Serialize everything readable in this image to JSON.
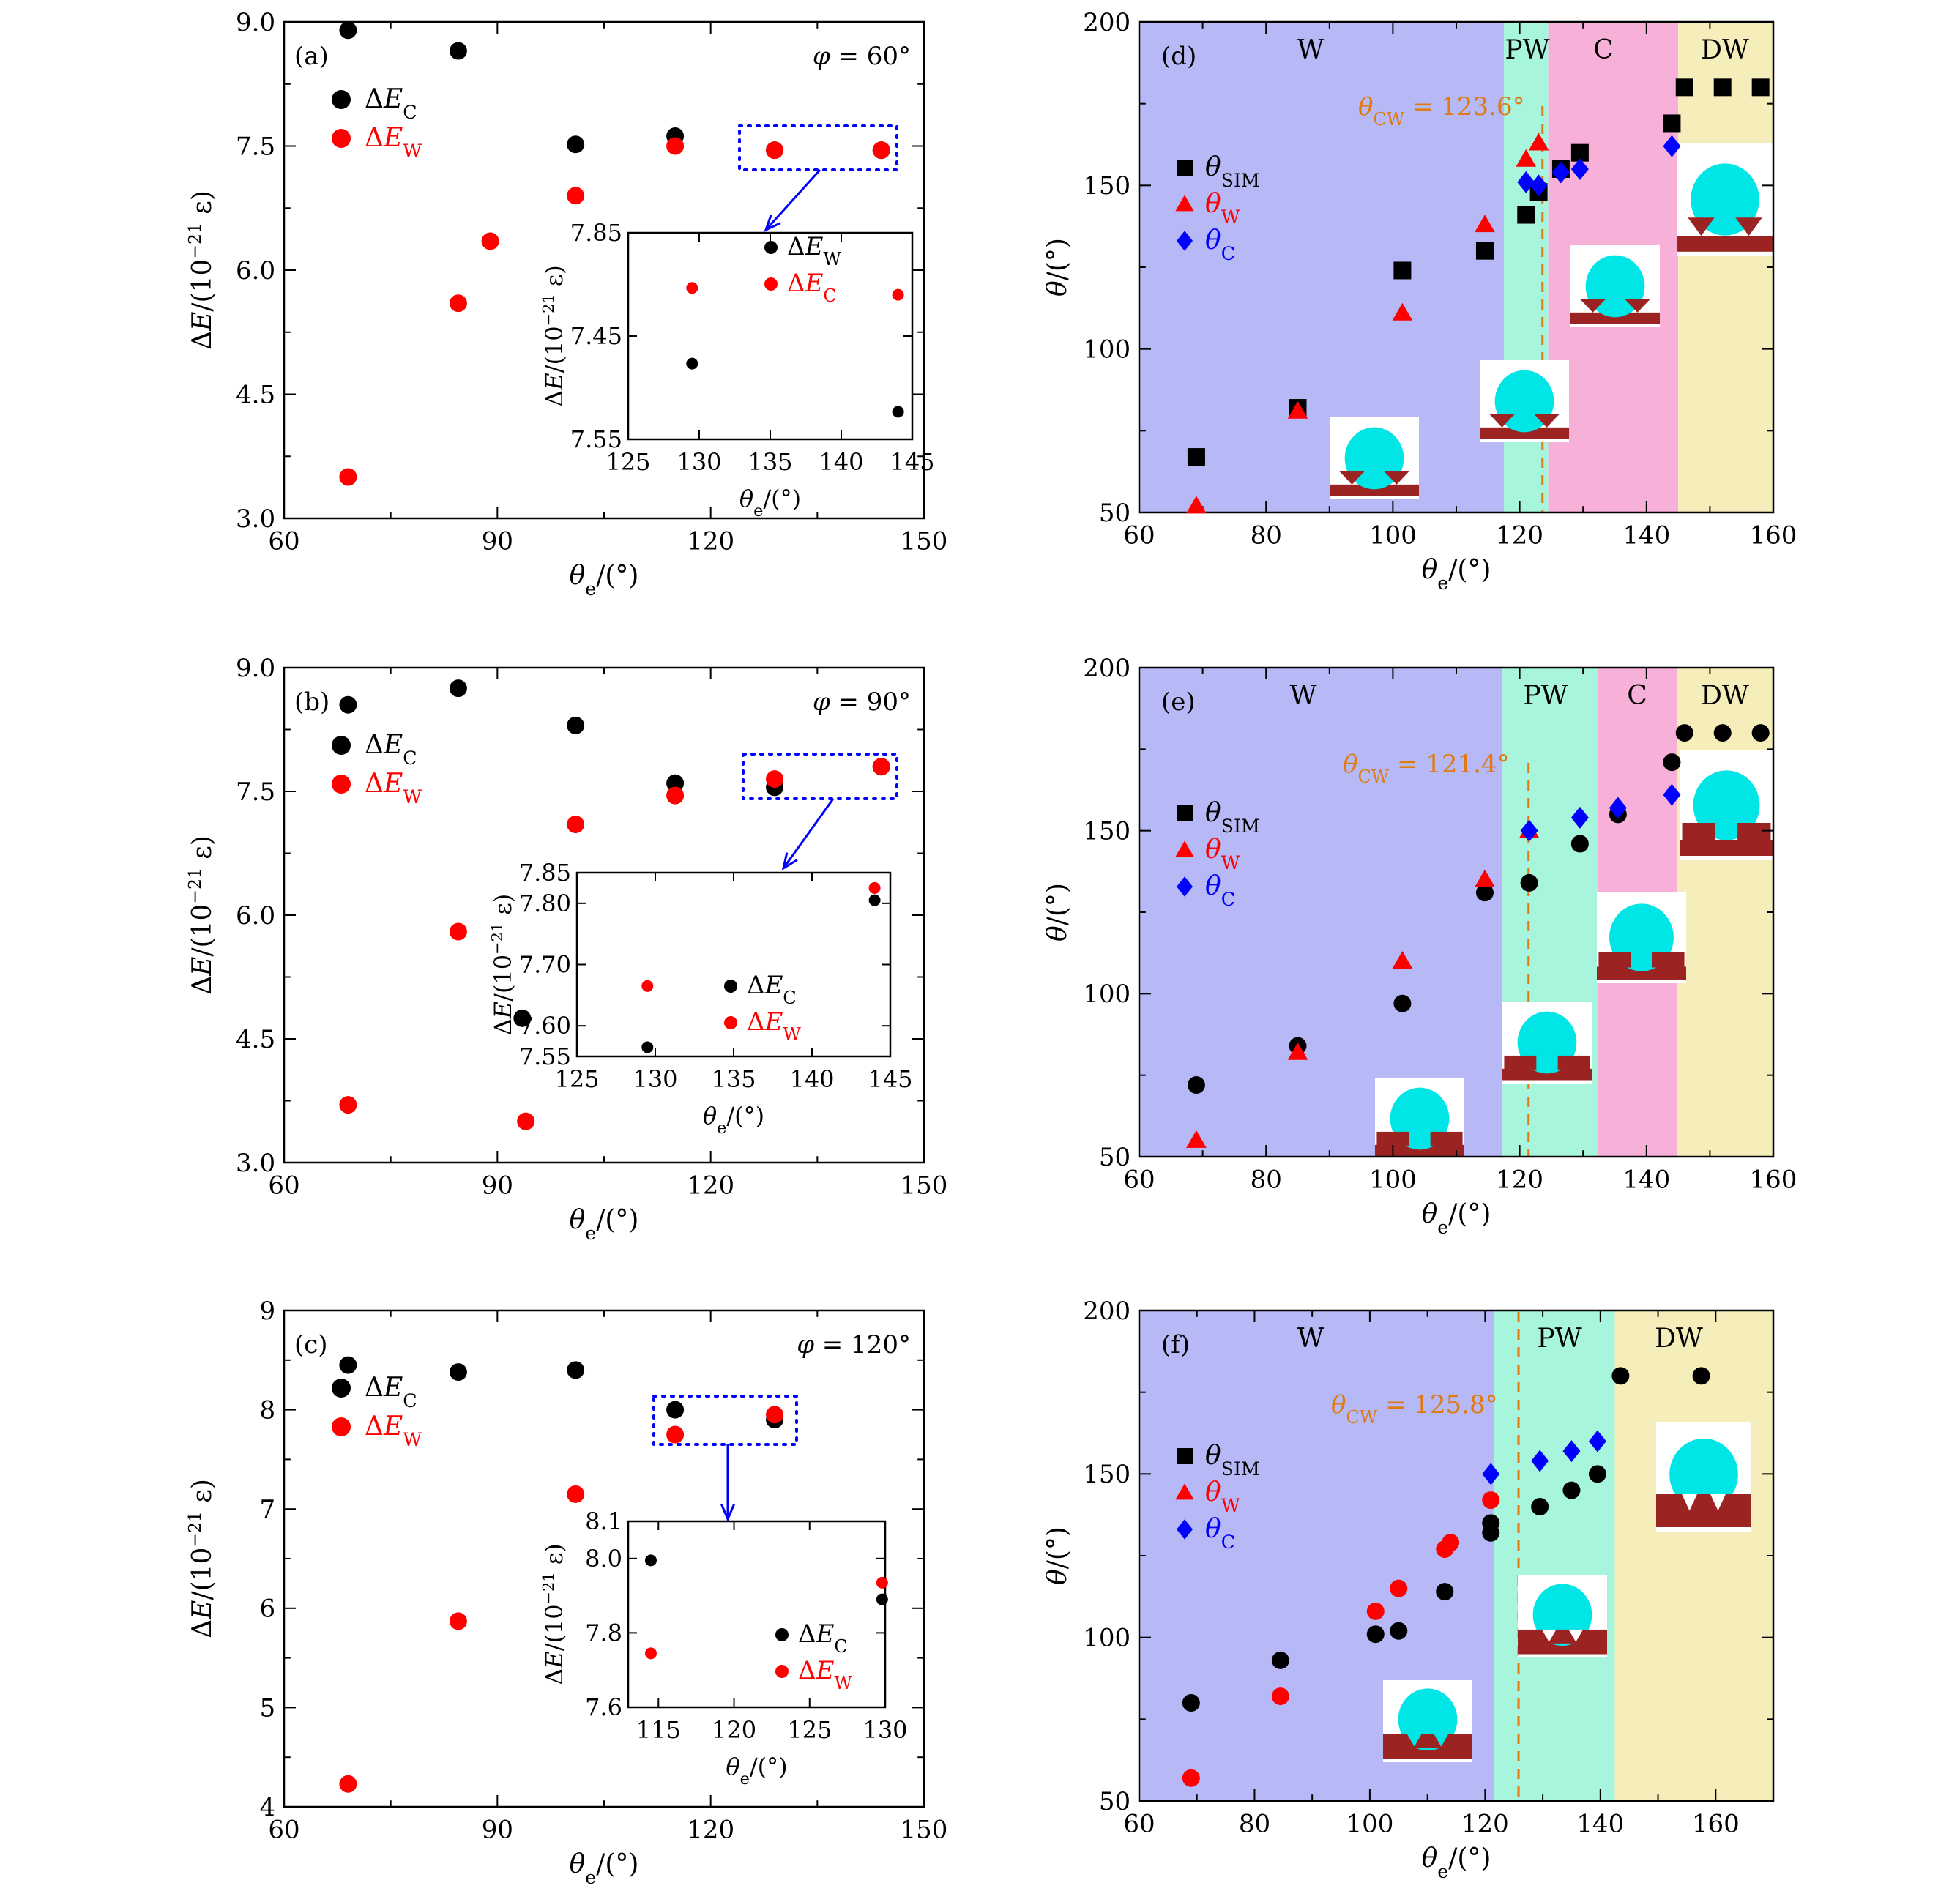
{
  "chart_data": [
    {
      "panel": "(a)",
      "type": "scatter",
      "annotation": "φ = 60°",
      "xlabel": "θe/(°)",
      "ylabel": "ΔE/(10⁻²¹ ε)",
      "xlim": [
        60,
        150
      ],
      "ylim": [
        3.0,
        9.0
      ],
      "xticks": [
        "60",
        "90",
        "120",
        "150"
      ],
      "yticks": [
        "3.0",
        "4.5",
        "6.0",
        "7.5",
        "9.0"
      ],
      "legend": [
        "ΔEC",
        "ΔEW"
      ],
      "legend_position": "upper-left",
      "series": [
        {
          "name": "ΔEC",
          "color": "#000000",
          "x": [
            69,
            84.5,
            101,
            115,
            129,
            144
          ],
          "y": [
            8.9,
            8.65,
            7.52,
            7.62,
            7.45,
            7.45
          ]
        },
        {
          "name": "ΔEW",
          "color": "#ff0000",
          "x": [
            69,
            84.5,
            89,
            101,
            115,
            129,
            144
          ],
          "y": [
            3.5,
            5.6,
            6.35,
            6.9,
            7.5,
            7.45,
            7.45
          ]
        }
      ],
      "inset": {
        "xlabel": "θe/(°)",
        "ylabel": "ΔE/(10⁻²¹ ε)",
        "xlim": [
          125,
          145
        ],
        "xticks": [
          "125",
          "130",
          "135",
          "140",
          "145"
        ],
        "yticks": [
          "7.85",
          "7.45",
          "7.55"
        ],
        "legend": [
          "ΔEW",
          "ΔEC"
        ],
        "points_black": [
          [
            129.5,
            7.66
          ],
          [
            144,
            7.59
          ]
        ],
        "points_red": [
          [
            129.5,
            7.77
          ],
          [
            144,
            7.76
          ]
        ]
      }
    },
    {
      "panel": "(b)",
      "type": "scatter",
      "annotation": "φ = 90°",
      "xlabel": "θe/(°)",
      "ylabel": "ΔE/(10⁻²¹ ε)",
      "xlim": [
        60,
        150
      ],
      "ylim": [
        3.0,
        9.0
      ],
      "xticks": [
        "60",
        "90",
        "120",
        "150"
      ],
      "yticks": [
        "3.0",
        "4.5",
        "6.0",
        "7.5",
        "9.0"
      ],
      "legend": [
        "ΔEC",
        "ΔEW"
      ],
      "legend_position": "upper-left",
      "series": [
        {
          "name": "ΔEC",
          "color": "#000000",
          "x": [
            69,
            84.5,
            93.5,
            101,
            115,
            129,
            144
          ],
          "y": [
            8.55,
            8.75,
            4.75,
            8.3,
            7.6,
            7.55,
            7.8
          ]
        },
        {
          "name": "ΔEW",
          "color": "#ff0000",
          "x": [
            69,
            84.5,
            94,
            101,
            115,
            129,
            144
          ],
          "y": [
            3.7,
            5.8,
            3.5,
            7.1,
            7.45,
            7.65,
            7.8
          ]
        }
      ],
      "inset": {
        "xlabel": "θe/(°)",
        "ylabel": "ΔE/(10⁻²¹ ε)",
        "xlim": [
          125,
          145
        ],
        "ylim": [
          7.55,
          7.85
        ],
        "xticks": [
          "125",
          "130",
          "135",
          "140",
          "145"
        ],
        "yticks": [
          "7.55",
          "7.60",
          "7.70",
          "7.80",
          "7.85"
        ],
        "legend": [
          "ΔEC",
          "ΔEW"
        ],
        "points_black": [
          [
            129.5,
            7.565
          ],
          [
            144,
            7.805
          ]
        ],
        "points_red": [
          [
            129.5,
            7.665
          ],
          [
            144,
            7.825
          ]
        ]
      }
    },
    {
      "panel": "(c)",
      "type": "scatter",
      "annotation": "φ = 120°",
      "xlabel": "θe/(°)",
      "ylabel": "ΔE/(10⁻²¹ ε)",
      "xlim": [
        60,
        150
      ],
      "ylim": [
        4,
        9
      ],
      "xticks": [
        "60",
        "90",
        "120",
        "150"
      ],
      "yticks": [
        "4",
        "5",
        "6",
        "7",
        "8",
        "9"
      ],
      "legend": [
        "ΔEC",
        "ΔEW"
      ],
      "legend_position": "upper-left",
      "series": [
        {
          "name": "ΔEC",
          "color": "#000000",
          "x": [
            69,
            84.5,
            101,
            115,
            129
          ],
          "y": [
            8.45,
            8.38,
            8.4,
            8.0,
            7.9
          ]
        },
        {
          "name": "ΔEW",
          "color": "#ff0000",
          "x": [
            69,
            84.5,
            101,
            115,
            129
          ],
          "y": [
            4.23,
            5.87,
            7.15,
            7.75,
            7.95
          ]
        }
      ],
      "inset": {
        "xlabel": "θe/(°)",
        "ylabel": "ΔE/(10⁻²¹ ε)",
        "xlim": [
          113,
          130
        ],
        "ylim": [
          7.6,
          8.1
        ],
        "xticks": [
          "115",
          "120",
          "125",
          "130"
        ],
        "yticks": [
          "7.6",
          "7.8",
          "8.0",
          "8.1"
        ],
        "legend": [
          "ΔEC",
          "ΔEW"
        ],
        "points_black": [
          [
            114.5,
            7.995
          ],
          [
            129.8,
            7.89
          ]
        ],
        "points_red": [
          [
            114.5,
            7.745
          ],
          [
            129.8,
            7.935
          ]
        ]
      }
    },
    {
      "panel": "(d)",
      "type": "scatter",
      "xlabel": "θe/(°)",
      "ylabel": "θ/(°)",
      "xlim": [
        60,
        160
      ],
      "ylim": [
        50,
        200
      ],
      "xticks": [
        "60",
        "80",
        "100",
        "120",
        "140",
        "160"
      ],
      "yticks": [
        "50",
        "100",
        "150",
        "200"
      ],
      "regions": [
        {
          "label": "W",
          "from": 60,
          "to": 117.5,
          "color": "#b6b9f5"
        },
        {
          "label": "PW",
          "from": 117.5,
          "to": 124.5,
          "color": "#a8f5de"
        },
        {
          "label": "C",
          "from": 124.5,
          "to": 145,
          "color": "#f7b0d8"
        },
        {
          "label": "DW",
          "from": 145,
          "to": 160,
          "color": "#f5eebb"
        }
      ],
      "critical_line": {
        "label": "θCW = 123.6°",
        "x": 123.6
      },
      "legend": [
        "θSIM",
        "θW",
        "θC"
      ],
      "series": [
        {
          "name": "θSIM",
          "marker": "square",
          "color": "#000000",
          "x": [
            69,
            85,
            101.5,
            114.5,
            121,
            123,
            126.5,
            129.5,
            144,
            146,
            152,
            158
          ],
          "y": [
            67,
            82,
            124,
            130,
            141,
            148,
            155,
            160,
            169,
            180,
            180,
            180
          ]
        },
        {
          "name": "θW",
          "marker": "triangle",
          "color": "#ff0000",
          "x": [
            69,
            85,
            101.5,
            114.5,
            121,
            123
          ],
          "y": [
            52,
            81,
            111,
            138,
            158,
            163
          ]
        },
        {
          "name": "θC",
          "marker": "diamond",
          "color": "#0000ff",
          "x": [
            121,
            123,
            126.5,
            129.5,
            144
          ],
          "y": [
            151,
            150,
            154,
            155,
            162
          ]
        }
      ]
    },
    {
      "panel": "(e)",
      "type": "scatter",
      "xlabel": "θe/(°)",
      "ylabel": "θ/(°)",
      "xlim": [
        60,
        160
      ],
      "ylim": [
        50,
        200
      ],
      "xticks": [
        "60",
        "80",
        "100",
        "120",
        "140",
        "160"
      ],
      "yticks": [
        "50",
        "100",
        "150",
        "200"
      ],
      "regions": [
        {
          "label": "W",
          "from": 60,
          "to": 117.3,
          "color": "#b6b9f5"
        },
        {
          "label": "PW",
          "from": 117.3,
          "to": 132.3,
          "color": "#a8f5de"
        },
        {
          "label": "C",
          "from": 132.3,
          "to": 144.8,
          "color": "#f7b0d8"
        },
        {
          "label": "DW",
          "from": 144.8,
          "to": 160,
          "color": "#f5eebb"
        }
      ],
      "critical_line": {
        "label": "θCW = 121.4°",
        "x": 121.4
      },
      "legend": [
        "θSIM",
        "θW",
        "θC"
      ],
      "series": [
        {
          "name": "θSIM",
          "marker": "circle",
          "color": "#000000",
          "x": [
            69,
            85,
            101.5,
            114.5,
            121.5,
            129.5,
            135.5,
            144,
            146,
            152,
            158
          ],
          "y": [
            72,
            84,
            97,
            131,
            134,
            146,
            155,
            171,
            180,
            180,
            180
          ]
        },
        {
          "name": "θW",
          "marker": "triangle",
          "color": "#ff0000",
          "x": [
            69,
            85,
            101.5,
            114.5,
            121.5
          ],
          "y": [
            55,
            82,
            110,
            135,
            150
          ]
        },
        {
          "name": "θC",
          "marker": "diamond",
          "color": "#0000ff",
          "x": [
            121.5,
            129.5,
            135.5,
            144
          ],
          "y": [
            150,
            154,
            157,
            161
          ]
        }
      ]
    },
    {
      "panel": "(f)",
      "type": "scatter",
      "xlabel": "θe/(°)",
      "ylabel": "θ/(°)",
      "xlim": [
        60,
        170
      ],
      "ylim": [
        50,
        200
      ],
      "xticks": [
        "60",
        "80",
        "100",
        "120",
        "140",
        "160"
      ],
      "yticks": [
        "50",
        "100",
        "150",
        "200"
      ],
      "regions": [
        {
          "label": "W",
          "from": 60,
          "to": 121.5,
          "color": "#b6b9f5"
        },
        {
          "label": "PW",
          "from": 121.5,
          "to": 142.5,
          "color": "#a8f5de"
        },
        {
          "label": "DW",
          "from": 142.5,
          "to": 170,
          "color": "#f5eebb"
        }
      ],
      "critical_line": {
        "label": "θCW = 125.8°",
        "x": 125.8
      },
      "legend": [
        "θSIM",
        "θW",
        "θC"
      ],
      "series": [
        {
          "name": "θSIM",
          "marker": "circle",
          "color": "#000000",
          "x": [
            69,
            84.5,
            101,
            105,
            113,
            121,
            121,
            129.5,
            135,
            139.5,
            143.5,
            157.5
          ],
          "y": [
            80,
            93,
            101,
            102,
            114,
            132,
            135,
            140,
            145,
            150,
            180,
            180
          ]
        },
        {
          "name": "θW",
          "marker": "circle",
          "color": "#ff0000",
          "x": [
            69,
            84.5,
            101,
            105,
            113,
            114,
            121
          ],
          "y": [
            57,
            82,
            108,
            115,
            127,
            129,
            142
          ]
        },
        {
          "name": "θC",
          "marker": "diamond",
          "color": "#0000ff",
          "x": [
            121,
            129.5,
            135,
            139.5
          ],
          "y": [
            150,
            154,
            157,
            160
          ]
        }
      ]
    }
  ]
}
